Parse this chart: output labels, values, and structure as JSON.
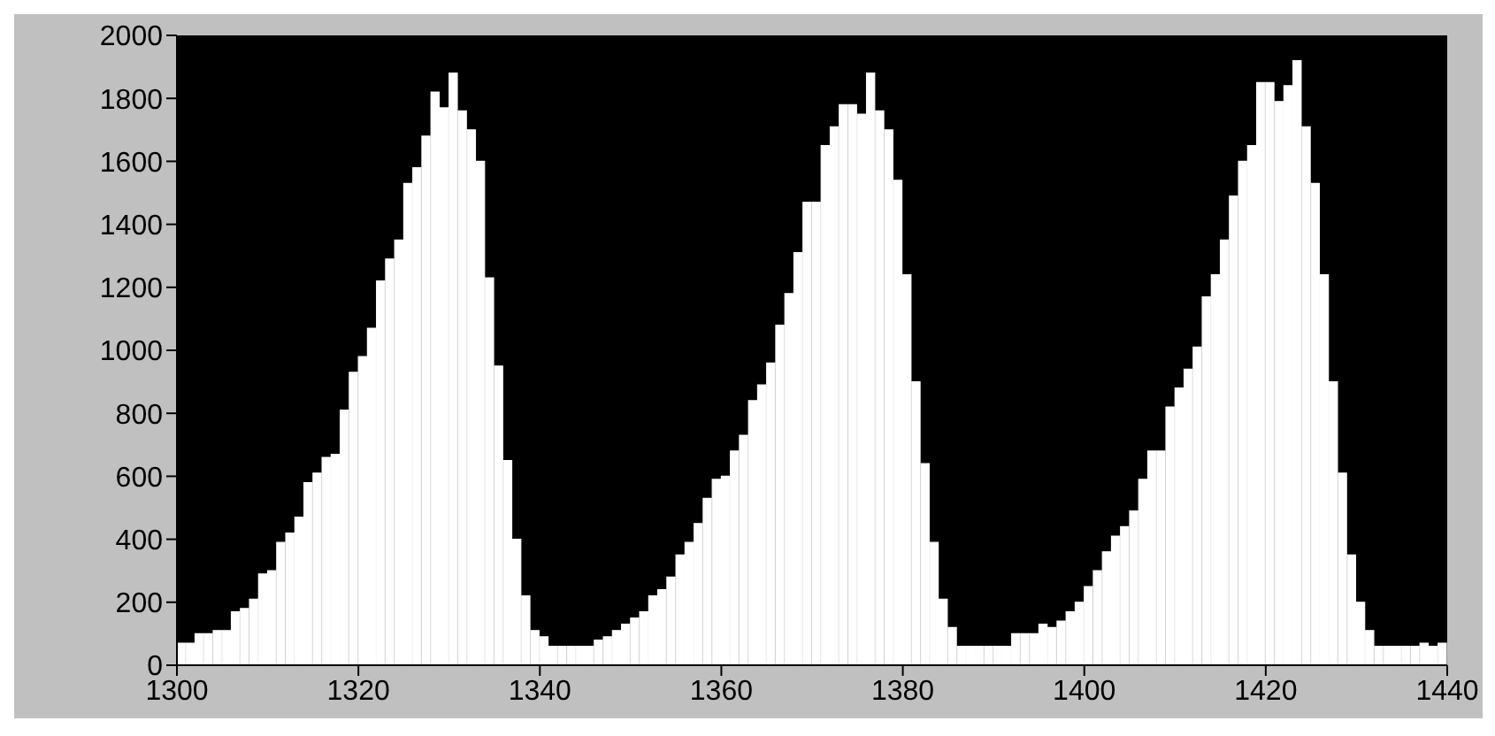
{
  "chart_data": {
    "type": "histogram",
    "bins": [
      1300,
      1301,
      1302,
      1303,
      1304,
      1305,
      1306,
      1307,
      1308,
      1309,
      1310,
      1311,
      1312,
      1313,
      1314,
      1315,
      1316,
      1317,
      1318,
      1319,
      1320,
      1321,
      1322,
      1323,
      1324,
      1325,
      1326,
      1327,
      1328,
      1329,
      1330,
      1331,
      1332,
      1333,
      1334,
      1335,
      1336,
      1337,
      1338,
      1339,
      1340,
      1341,
      1342,
      1343,
      1344,
      1345,
      1346,
      1347,
      1348,
      1349,
      1350,
      1351,
      1352,
      1353,
      1354,
      1355,
      1356,
      1357,
      1358,
      1359,
      1360,
      1361,
      1362,
      1363,
      1364,
      1365,
      1366,
      1367,
      1368,
      1369,
      1370,
      1371,
      1372,
      1373,
      1374,
      1375,
      1376,
      1377,
      1378,
      1379,
      1380,
      1381,
      1382,
      1383,
      1384,
      1385,
      1386,
      1387,
      1388,
      1389,
      1390,
      1391,
      1392,
      1393,
      1394,
      1395,
      1396,
      1397,
      1398,
      1399,
      1400,
      1401,
      1402,
      1403,
      1404,
      1405,
      1406,
      1407,
      1408,
      1409,
      1410,
      1411,
      1412,
      1413,
      1414,
      1415,
      1416,
      1417,
      1418,
      1419,
      1420,
      1421,
      1422,
      1423,
      1424,
      1425,
      1426,
      1427,
      1428,
      1429,
      1430,
      1431,
      1432,
      1433,
      1434,
      1435,
      1436,
      1437,
      1438,
      1439,
      1440
    ],
    "values": [
      70,
      70,
      100,
      100,
      110,
      110,
      170,
      180,
      210,
      290,
      300,
      390,
      420,
      470,
      580,
      610,
      660,
      670,
      810,
      930,
      980,
      1070,
      1220,
      1290,
      1350,
      1530,
      1580,
      1680,
      1820,
      1770,
      1880,
      1760,
      1700,
      1600,
      1230,
      950,
      650,
      400,
      220,
      110,
      90,
      60,
      60,
      60,
      60,
      60,
      80,
      90,
      110,
      130,
      150,
      170,
      220,
      240,
      280,
      350,
      390,
      450,
      530,
      590,
      600,
      680,
      730,
      840,
      890,
      960,
      1080,
      1180,
      1310,
      1470,
      1470,
      1650,
      1710,
      1780,
      1780,
      1750,
      1880,
      1760,
      1700,
      1540,
      1240,
      900,
      640,
      390,
      210,
      120,
      60,
      60,
      60,
      60,
      60,
      60,
      100,
      100,
      100,
      130,
      120,
      140,
      170,
      200,
      250,
      300,
      360,
      410,
      440,
      490,
      590,
      680,
      680,
      820,
      880,
      940,
      1010,
      1170,
      1240,
      1350,
      1490,
      1600,
      1650,
      1850,
      1850,
      1790,
      1840,
      1920,
      1710,
      1530,
      1240,
      900,
      610,
      350,
      200,
      110,
      60,
      60,
      60,
      60,
      60,
      70,
      60,
      70
    ],
    "color": "#ffffff",
    "xlim": [
      1300,
      1440
    ],
    "xticks": [
      1300,
      1320,
      1340,
      1360,
      1380,
      1400,
      1420,
      1440
    ],
    "ylim": [
      0,
      2000
    ],
    "yticks": [
      0,
      200,
      400,
      600,
      800,
      1000,
      1200,
      1400,
      1600,
      1800,
      2000
    ],
    "grid": false
  }
}
